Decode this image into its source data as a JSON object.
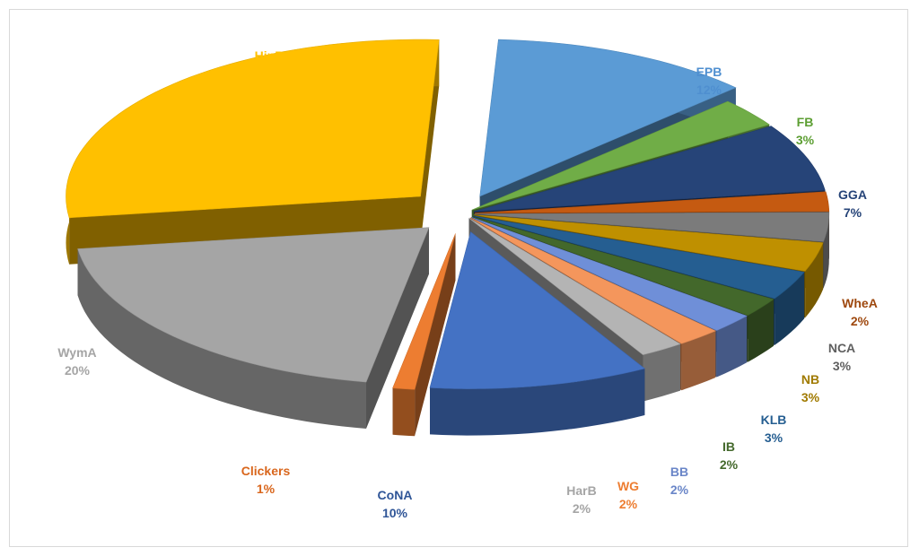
{
  "chart_data": {
    "type": "pie",
    "title": "",
    "labels_show": [
      "name",
      "percent"
    ],
    "slices": [
      {
        "name": "EPB",
        "value": 12,
        "pct_label": "12%",
        "color": "#5b9bd5",
        "label_color": "#4f8fd0"
      },
      {
        "name": "FB",
        "value": 3,
        "pct_label": "3%",
        "color": "#70ad47",
        "label_color": "#5c9e32"
      },
      {
        "name": "GGA",
        "value": 7,
        "pct_label": "7%",
        "color": "#264478",
        "label_color": "#264478"
      },
      {
        "name": "WheA",
        "value": 2,
        "pct_label": "2%",
        "color": "#c55a11",
        "label_color": "#9e480e"
      },
      {
        "name": "NCA",
        "value": 3,
        "pct_label": "3%",
        "color": "#7b7b7b",
        "label_color": "#5f5f5f"
      },
      {
        "name": "NB",
        "value": 3,
        "pct_label": "3%",
        "color": "#bf9000",
        "label_color": "#a07a00"
      },
      {
        "name": "KLB",
        "value": 3,
        "pct_label": "3%",
        "color": "#255e91",
        "label_color": "#255e91"
      },
      {
        "name": "IB",
        "value": 2,
        "pct_label": "2%",
        "color": "#43682b",
        "label_color": "#43682b"
      },
      {
        "name": "BB",
        "value": 2,
        "pct_label": "2%",
        "color": "#6f8fd8",
        "label_color": "#6a86c8"
      },
      {
        "name": "WG",
        "value": 2,
        "pct_label": "2%",
        "color": "#f4965c",
        "label_color": "#ed7d31"
      },
      {
        "name": "HarB",
        "value": 2,
        "pct_label": "2%",
        "color": "#b4b4b4",
        "label_color": "#a5a5a5"
      },
      {
        "name": "CoNA",
        "value": 10,
        "pct_label": "10%",
        "color": "#4472c4",
        "label_color": "#2f5597"
      },
      {
        "name": "Clickers",
        "value": 1,
        "pct_label": "1%",
        "color": "#ed7d31",
        "label_color": "#d9661c"
      },
      {
        "name": "WymA",
        "value": 20,
        "pct_label": "20%",
        "color": "#a5a5a5",
        "label_color": "#a5a5a5"
      },
      {
        "name": "HinB",
        "value": 28,
        "pct_label": "28%",
        "color": "#ffc000",
        "label_color": "#ffc000"
      }
    ]
  }
}
